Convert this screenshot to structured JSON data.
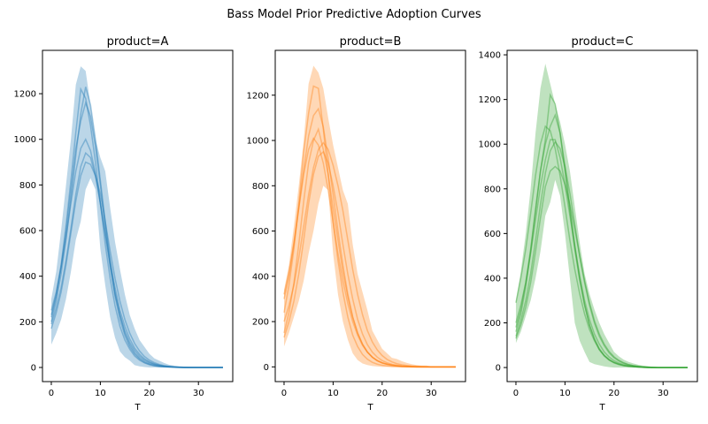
{
  "figure": {
    "title": "Bass Model Prior Predictive Adoption Curves"
  },
  "chart_data": [
    {
      "type": "line",
      "title": "product=A",
      "xlabel": "T",
      "ylabel": "",
      "color": "#1f77b4",
      "xlim": [
        -1.8,
        37
      ],
      "ylim": [
        -62,
        1390
      ],
      "xticks": [
        0,
        10,
        20,
        30
      ],
      "yticks": [
        0,
        200,
        400,
        600,
        800,
        1000,
        1200
      ],
      "band": {
        "lower": [
          100,
          150,
          210,
          300,
          420,
          560,
          640,
          780,
          830,
          780,
          520,
          360,
          220,
          130,
          70,
          45,
          30,
          10,
          5,
          2,
          0,
          0,
          0,
          0,
          0,
          0,
          0,
          0,
          0,
          0,
          0,
          0,
          0,
          0,
          0,
          0
        ],
        "upper": [
          300,
          420,
          600,
          800,
          1000,
          1240,
          1320,
          1300,
          1150,
          1000,
          920,
          860,
          700,
          550,
          430,
          320,
          230,
          170,
          120,
          90,
          60,
          40,
          30,
          20,
          12,
          8,
          5,
          4,
          3,
          2,
          1,
          0,
          0,
          0,
          0,
          0
        ]
      },
      "series": [
        {
          "values": [
            230,
            320,
            450,
            620,
            820,
            1030,
            1220,
            1180,
            1060,
            900,
            720,
            540,
            390,
            270,
            180,
            120,
            80,
            50,
            32,
            20,
            12,
            7,
            4,
            3,
            2,
            1,
            0,
            0,
            0,
            0,
            0,
            0,
            0,
            0,
            0,
            0
          ]
        },
        {
          "values": [
            200,
            290,
            410,
            560,
            740,
            930,
            1110,
            1230,
            1150,
            1000,
            820,
            640,
            470,
            330,
            230,
            150,
            100,
            65,
            42,
            27,
            17,
            11,
            7,
            4,
            3,
            2,
            1,
            0,
            0,
            0,
            0,
            0,
            0,
            0,
            0,
            0
          ]
        },
        {
          "values": [
            250,
            330,
            440,
            570,
            720,
            860,
            960,
            1000,
            950,
            850,
            720,
            580,
            440,
            320,
            230,
            160,
            110,
            75,
            50,
            33,
            22,
            14,
            9,
            6,
            4,
            2,
            1,
            0,
            0,
            0,
            0,
            0,
            0,
            0,
            0,
            0
          ]
        },
        {
          "values": [
            190,
            260,
            350,
            470,
            610,
            760,
            880,
            940,
            920,
            840,
            720,
            590,
            460,
            350,
            250,
            180,
            125,
            85,
            58,
            38,
            25,
            16,
            10,
            6,
            4,
            2,
            1,
            0,
            0,
            0,
            0,
            0,
            0,
            0,
            0,
            0
          ]
        },
        {
          "values": [
            220,
            310,
            440,
            600,
            780,
            960,
            1080,
            1160,
            1100,
            970,
            800,
            620,
            450,
            310,
            210,
            140,
            90,
            58,
            36,
            22,
            14,
            8,
            5,
            3,
            2,
            1,
            0,
            0,
            0,
            0,
            0,
            0,
            0,
            0,
            0,
            0
          ]
        },
        {
          "values": [
            170,
            240,
            330,
            450,
            590,
            730,
            840,
            900,
            890,
            840,
            760,
            640,
            510,
            390,
            290,
            210,
            150,
            105,
            72,
            48,
            32,
            21,
            13,
            8,
            5,
            3,
            2,
            1,
            0,
            0,
            0,
            0,
            0,
            0,
            0,
            0
          ]
        }
      ]
    },
    {
      "type": "line",
      "title": "product=B",
      "xlabel": "T",
      "ylabel": "",
      "color": "#ff7f0e",
      "xlim": [
        -1.8,
        37
      ],
      "ylim": [
        -65,
        1398
      ],
      "xticks": [
        0,
        10,
        20,
        30
      ],
      "yticks": [
        0,
        200,
        400,
        600,
        800,
        1000,
        1200
      ],
      "band": {
        "lower": [
          90,
          150,
          220,
          290,
          380,
          500,
          600,
          720,
          800,
          780,
          500,
          320,
          200,
          120,
          60,
          30,
          15,
          8,
          4,
          2,
          0,
          0,
          0,
          0,
          0,
          0,
          0,
          0,
          0,
          0,
          0,
          0,
          0,
          0,
          0,
          0
        ],
        "upper": [
          340,
          450,
          620,
          800,
          1000,
          1250,
          1330,
          1300,
          1230,
          1100,
          980,
          880,
          780,
          720,
          540,
          410,
          330,
          250,
          160,
          120,
          80,
          60,
          40,
          35,
          25,
          18,
          12,
          8,
          6,
          6,
          3,
          0,
          0,
          0,
          0,
          0
        ]
      },
      "series": [
        {
          "values": [
            240,
            360,
            520,
            720,
            950,
            1120,
            1240,
            1230,
            1050,
            850,
            640,
            470,
            330,
            220,
            140,
            90,
            55,
            34,
            20,
            12,
            7,
            4,
            2,
            1,
            0,
            0,
            0,
            0,
            0,
            0,
            0,
            0,
            0,
            0,
            0,
            0
          ]
        },
        {
          "values": [
            300,
            400,
            540,
            700,
            870,
            1020,
            1110,
            1140,
            1060,
            920,
            760,
            600,
            450,
            320,
            220,
            150,
            100,
            65,
            42,
            27,
            17,
            11,
            7,
            4,
            2,
            1,
            0,
            0,
            0,
            0,
            0,
            0,
            0,
            0,
            0,
            0
          ]
        },
        {
          "values": [
            130,
            200,
            290,
            410,
            560,
            720,
            850,
            930,
            950,
            900,
            800,
            680,
            540,
            410,
            300,
            210,
            145,
            98,
            65,
            43,
            28,
            18,
            11,
            7,
            4,
            3,
            2,
            1,
            0,
            0,
            0,
            0,
            0,
            0,
            0,
            0
          ]
        },
        {
          "values": [
            320,
            420,
            550,
            700,
            850,
            960,
            1010,
            980,
            900,
            780,
            640,
            500,
            380,
            280,
            200,
            140,
            95,
            64,
            43,
            28,
            18,
            12,
            8,
            5,
            3,
            2,
            1,
            0,
            0,
            0,
            0,
            0,
            0,
            0,
            0,
            0
          ]
        },
        {
          "values": [
            150,
            240,
            370,
            540,
            730,
            900,
            1000,
            1050,
            960,
            850,
            700,
            560,
            420,
            310,
            220,
            150,
            100,
            66,
            43,
            28,
            18,
            12,
            7,
            4,
            3,
            2,
            1,
            0,
            0,
            0,
            0,
            0,
            0,
            0,
            0,
            0
          ]
        },
        {
          "values": [
            200,
            270,
            360,
            480,
            620,
            760,
            880,
            960,
            990,
            960,
            890,
            800,
            690,
            560,
            430,
            320,
            230,
            160,
            110,
            75,
            50,
            33,
            22,
            14,
            9,
            6,
            4,
            3,
            2,
            1,
            0,
            0,
            0,
            0,
            0,
            0
          ]
        }
      ]
    },
    {
      "type": "line",
      "title": "product=C",
      "xlabel": "T",
      "ylabel": "",
      "color": "#2ca02c",
      "xlim": [
        -1.8,
        37
      ],
      "ylim": [
        -63,
        1420
      ],
      "xticks": [
        0,
        10,
        20,
        30
      ],
      "yticks": [
        0,
        200,
        400,
        600,
        800,
        1000,
        1200,
        1400
      ],
      "band": {
        "lower": [
          110,
          160,
          230,
          300,
          400,
          520,
          680,
          740,
          840,
          770,
          600,
          400,
          200,
          120,
          70,
          25,
          15,
          10,
          5,
          2,
          0,
          0,
          0,
          0,
          0,
          0,
          0,
          0,
          0,
          0,
          0,
          0,
          0,
          0,
          0,
          0
        ],
        "upper": [
          300,
          430,
          600,
          800,
          1050,
          1250,
          1360,
          1270,
          1180,
          1100,
          1000,
          880,
          720,
          560,
          420,
          330,
          260,
          200,
          150,
          110,
          70,
          50,
          35,
          25,
          18,
          12,
          8,
          5,
          3,
          2,
          0,
          0,
          0,
          0,
          0,
          0
        ]
      },
      "series": [
        {
          "values": [
            160,
            240,
            360,
            520,
            700,
            880,
            1020,
            1220,
            1180,
            1050,
            880,
            700,
            530,
            390,
            280,
            190,
            130,
            85,
            55,
            36,
            23,
            15,
            9,
            6,
            4,
            2,
            1,
            0,
            0,
            0,
            0,
            0,
            0,
            0,
            0,
            0
          ]
        },
        {
          "values": [
            290,
            400,
            530,
            690,
            860,
            1000,
            1080,
            1060,
            980,
            860,
            720,
            570,
            440,
            330,
            240,
            170,
            120,
            80,
            54,
            35,
            23,
            15,
            9,
            6,
            4,
            2,
            1,
            0,
            0,
            0,
            0,
            0,
            0,
            0,
            0,
            0
          ]
        },
        {
          "values": [
            140,
            210,
            300,
            420,
            570,
            730,
            870,
            970,
            1010,
            980,
            900,
            780,
            640,
            500,
            380,
            280,
            200,
            140,
            98,
            66,
            44,
            29,
            19,
            12,
            8,
            5,
            3,
            2,
            1,
            0,
            0,
            0,
            0,
            0,
            0,
            0
          ]
        },
        {
          "values": [
            200,
            280,
            380,
            510,
            660,
            810,
            930,
            1020,
            1020,
            940,
            820,
            680,
            540,
            410,
            300,
            215,
            150,
            105,
            70,
            47,
            31,
            20,
            13,
            8,
            5,
            3,
            2,
            1,
            0,
            0,
            0,
            0,
            0,
            0,
            0,
            0
          ]
        },
        {
          "values": [
            130,
            190,
            270,
            380,
            520,
            670,
            810,
            880,
            900,
            880,
            820,
            730,
            620,
            500,
            390,
            290,
            210,
            150,
            105,
            72,
            48,
            32,
            21,
            13,
            8,
            5,
            3,
            2,
            1,
            0,
            0,
            0,
            0,
            0,
            0,
            0
          ]
        },
        {
          "values": [
            180,
            260,
            380,
            530,
            710,
            880,
            1000,
            1080,
            1130,
            1050,
            900,
            720,
            550,
            400,
            280,
            190,
            125,
            80,
            52,
            33,
            21,
            13,
            8,
            5,
            3,
            2,
            1,
            0,
            0,
            0,
            0,
            0,
            0,
            0,
            0,
            0
          ]
        }
      ]
    }
  ]
}
